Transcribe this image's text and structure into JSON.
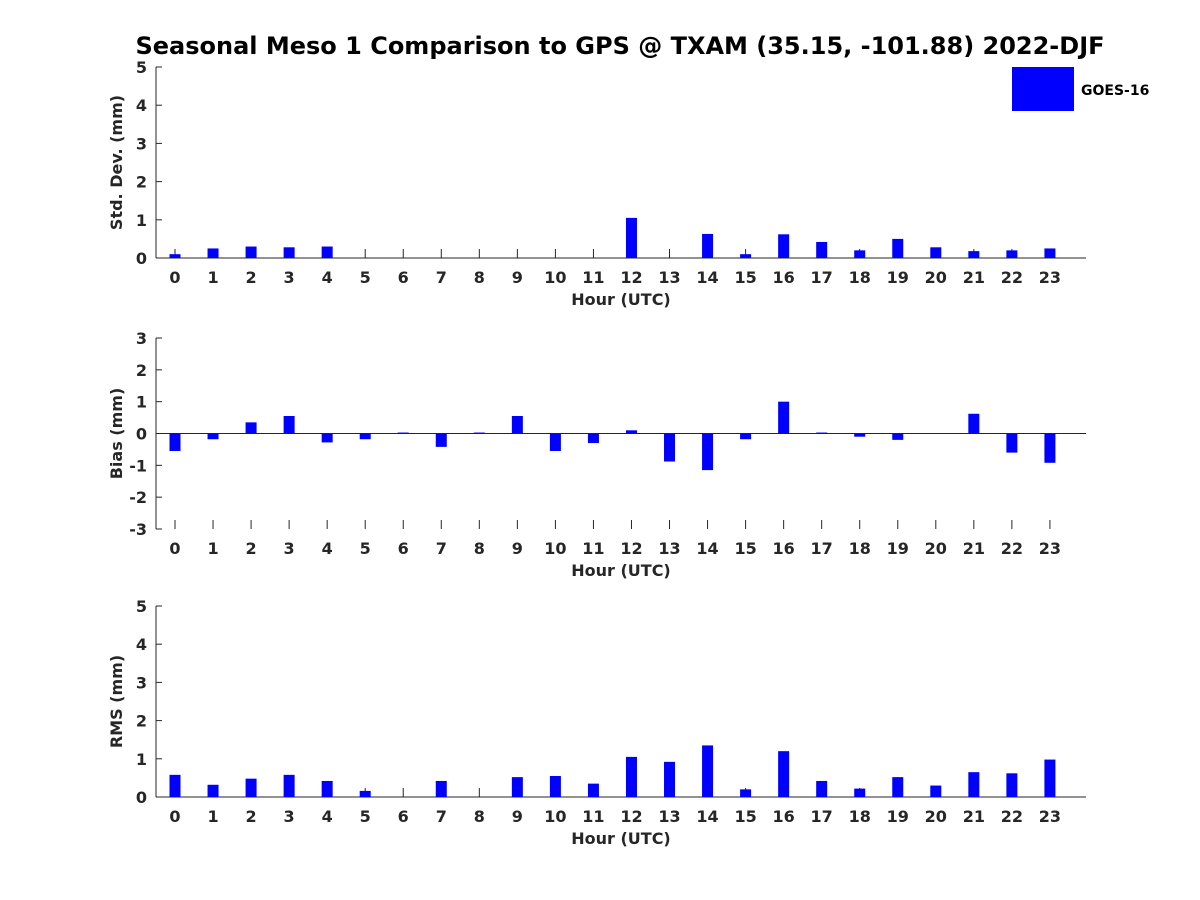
{
  "chart_data": {
    "title": "Seasonal Meso 1 Comparison to GPS @ TXAM (35.15, -101.88) 2022-DJF",
    "legend": {
      "label": "GOES-16",
      "placement": "top-right"
    },
    "bar_color": "#0000ff",
    "panels": [
      {
        "type": "bar",
        "name": "std-dev",
        "xlabel": "Hour (UTC)",
        "ylabel": "Std. Dev. (mm)",
        "ylim": [
          0,
          5
        ],
        "yticks": [
          0,
          1,
          2,
          3,
          4,
          5
        ],
        "categories": [
          "0",
          "1",
          "2",
          "3",
          "4",
          "5",
          "6",
          "7",
          "8",
          "9",
          "10",
          "11",
          "12",
          "13",
          "14",
          "15",
          "16",
          "17",
          "18",
          "19",
          "20",
          "21",
          "22",
          "23"
        ],
        "values": [
          0.1,
          0.25,
          0.3,
          0.28,
          0.3,
          0,
          0,
          0,
          0,
          0,
          0,
          0,
          1.05,
          0,
          0.63,
          0.1,
          0.62,
          0.42,
          0.2,
          0.5,
          0.28,
          0.18,
          0.2,
          0.25
        ]
      },
      {
        "type": "bar",
        "name": "bias",
        "xlabel": "Hour (UTC)",
        "ylabel": "Bias (mm)",
        "ylim": [
          -3,
          3
        ],
        "yticks": [
          -3,
          -2,
          -1,
          0,
          1,
          2,
          3
        ],
        "categories": [
          "0",
          "1",
          "2",
          "3",
          "4",
          "5",
          "6",
          "7",
          "8",
          "9",
          "10",
          "11",
          "12",
          "13",
          "14",
          "15",
          "16",
          "17",
          "18",
          "19",
          "20",
          "21",
          "22",
          "23"
        ],
        "values": [
          -0.55,
          -0.18,
          0.35,
          0.55,
          -0.28,
          -0.18,
          0.03,
          -0.42,
          0.03,
          0.55,
          -0.55,
          -0.3,
          0.1,
          -0.88,
          -1.15,
          -0.18,
          1.0,
          0.03,
          -0.1,
          -0.2,
          0,
          0.62,
          -0.6,
          -0.92
        ]
      },
      {
        "type": "bar",
        "name": "rms",
        "xlabel": "Hour (UTC)",
        "ylabel": "RMS (mm)",
        "ylim": [
          0,
          5
        ],
        "yticks": [
          0,
          1,
          2,
          3,
          4,
          5
        ],
        "categories": [
          "0",
          "1",
          "2",
          "3",
          "4",
          "5",
          "6",
          "7",
          "8",
          "9",
          "10",
          "11",
          "12",
          "13",
          "14",
          "15",
          "16",
          "17",
          "18",
          "19",
          "20",
          "21",
          "22",
          "23"
        ],
        "values": [
          0.58,
          0.32,
          0.48,
          0.58,
          0.42,
          0.16,
          0,
          0.42,
          0,
          0.52,
          0.55,
          0.35,
          1.05,
          0.92,
          1.35,
          0.2,
          1.2,
          0.42,
          0.22,
          0.52,
          0.3,
          0.65,
          0.62,
          0.98
        ]
      }
    ]
  }
}
